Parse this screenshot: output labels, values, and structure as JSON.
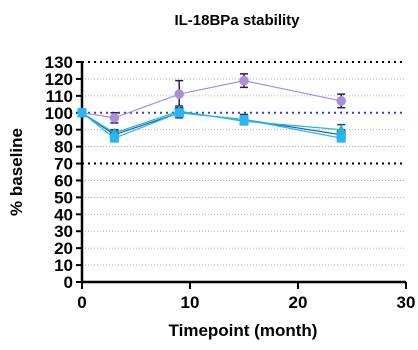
{
  "chart_data": {
    "type": "line",
    "title": "IL-18BPa stability",
    "xlabel": "Timepoint (month)",
    "ylabel": "% baseline",
    "xlim": [
      0,
      30
    ],
    "ylim": [
      0,
      130
    ],
    "x_ticks": [
      0,
      10,
      20,
      30
    ],
    "y_ticks": [
      0,
      10,
      20,
      30,
      40,
      50,
      60,
      70,
      80,
      90,
      100,
      110,
      120,
      130
    ],
    "x_tick_labels": [
      "0",
      "10",
      "20",
      "30"
    ],
    "y_tick_labels": [
      "0",
      "10",
      "20",
      "30",
      "40",
      "50",
      "60",
      "70",
      "80",
      "90",
      "100",
      "110",
      "120",
      "130"
    ],
    "grid": "horizontal dotted at every 10%",
    "legend": "none",
    "reference_lines": [
      {
        "y": 130,
        "color": "#000000",
        "style": "dotted"
      },
      {
        "y": 100,
        "color": "#3b3bd6",
        "style": "dotted"
      },
      {
        "y": 70,
        "color": "#000000",
        "style": "dotted"
      }
    ],
    "series": [
      {
        "color": "#a98fd8",
        "marker": "circle",
        "x": [
          0,
          3,
          9,
          15,
          24
        ],
        "y": [
          100,
          97,
          111,
          119,
          107
        ],
        "err": [
          0,
          3,
          8,
          4,
          4
        ]
      },
      {
        "color": "#1565c0",
        "marker": "square",
        "x": [
          0,
          3,
          9,
          15,
          24
        ],
        "y": [
          100,
          87,
          100,
          96,
          87
        ],
        "err": [
          0,
          2,
          3,
          3,
          3
        ]
      },
      {
        "color": "#26b7c5",
        "marker": "triangle",
        "x": [
          0,
          3,
          9,
          15,
          24
        ],
        "y": [
          100,
          88,
          101,
          95,
          90
        ],
        "err": [
          0,
          2,
          3,
          2,
          3
        ]
      },
      {
        "color": "#29b6f6",
        "marker": "square",
        "x": [
          0,
          3,
          9,
          15,
          24
        ],
        "y": [
          100,
          85,
          100,
          96,
          85
        ],
        "err": [
          0,
          2,
          2,
          2,
          2
        ]
      }
    ]
  }
}
